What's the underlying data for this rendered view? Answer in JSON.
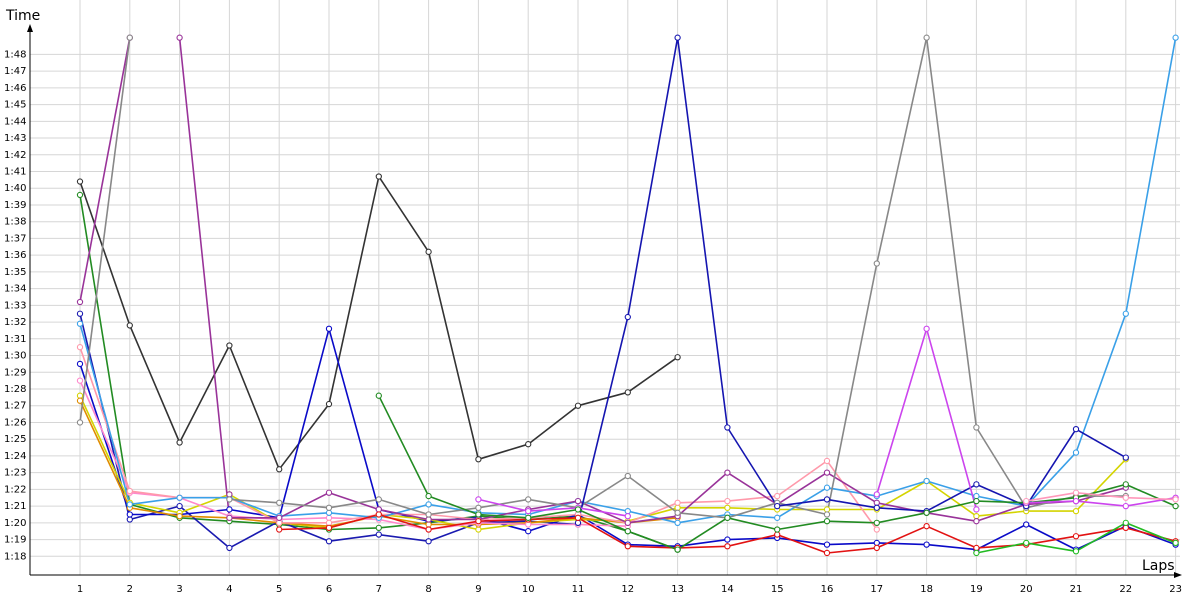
{
  "chart_data": {
    "type": "line",
    "title": "",
    "xlabel": "Laps",
    "ylabel": "Time",
    "x": [
      1,
      2,
      3,
      4,
      5,
      6,
      7,
      8,
      9,
      10,
      11,
      12,
      13,
      14,
      15,
      16,
      17,
      18,
      19,
      20,
      21,
      22,
      23
    ],
    "xlim": [
      1,
      23
    ],
    "ylim": [
      77,
      109
    ],
    "y_tick_values": [
      78,
      79,
      80,
      81,
      82,
      83,
      84,
      85,
      86,
      87,
      88,
      89,
      90,
      91,
      92,
      93,
      94,
      95,
      96,
      97,
      98,
      99,
      100,
      101,
      102,
      103,
      104,
      105,
      106,
      107,
      108
    ],
    "y_tick_labels": [
      "1:18",
      "1:19",
      "1:20",
      "1:21",
      "1:22",
      "1:23",
      "1:24",
      "1:25",
      "1:26",
      "1:27",
      "1:28",
      "1:29",
      "1:30",
      "1:31",
      "1:32",
      "1:33",
      "1:34",
      "1:35",
      "1:36",
      "1:37",
      "1:38",
      "1:39",
      "1:40",
      "1:41",
      "1:42",
      "1:43",
      "1:44",
      "1:45",
      "1:46",
      "1:47",
      "1:48"
    ],
    "grid": true,
    "legend": "none",
    "series": [
      {
        "color": "#333333",
        "values": [
          100.4,
          91.8,
          84.8,
          90.6,
          83.2,
          87.1,
          100.7,
          96.2,
          83.8,
          84.7,
          87.0,
          87.8,
          89.9,
          null,
          null,
          null,
          null,
          null,
          null,
          null,
          null,
          null,
          null
        ]
      },
      {
        "color": "#228B22",
        "values": [
          99.6,
          81.1,
          80.3,
          80.1,
          79.9,
          79.6,
          79.7,
          80.0,
          80.4,
          80.2,
          80.4,
          79.5,
          78.4,
          null,
          null,
          null,
          null,
          null,
          null,
          null,
          null,
          null,
          null
        ]
      },
      {
        "color": "#1a1ab0",
        "values": [
          92.5,
          80.2,
          81.0,
          78.5,
          80.1,
          78.9,
          79.3,
          78.9,
          80.0,
          80.1,
          79.9,
          null,
          null,
          null,
          null,
          null,
          null,
          null,
          null,
          null,
          null,
          null,
          null
        ]
      },
      {
        "color": "#0a0ac8",
        "values": [
          89.5,
          80.5,
          80.5,
          80.8,
          80.3,
          91.6,
          80.8,
          80.1,
          80.3,
          79.5,
          80.5,
          78.7,
          78.6,
          79.0,
          79.1,
          78.7,
          78.8,
          78.7,
          78.4,
          79.9,
          78.4,
          79.8,
          78.7
        ]
      },
      {
        "color": "#d4d400",
        "values": [
          87.6,
          81.2,
          80.6,
          81.7,
          80.0,
          79.7,
          80.5,
          80.2,
          79.6,
          80.0,
          80.2,
          80.1,
          80.9,
          80.9,
          80.8,
          80.8,
          80.8,
          82.5,
          80.4,
          80.7,
          80.7,
          83.8,
          null
        ]
      },
      {
        "color": "#e08c00",
        "values": [
          87.3,
          80.9,
          80.4,
          80.3,
          80.0,
          79.8,
          80.4,
          79.9,
          79.9,
          80.0,
          80.3,
          80.0,
          80.3,
          null,
          null,
          null,
          null,
          null,
          null,
          null,
          null,
          null,
          null
        ]
      },
      {
        "color": "#ff88cc",
        "values": [
          88.5,
          81.8,
          81.5,
          80.4,
          80.2,
          80.3,
          80.2,
          79.6,
          80.0,
          79.9,
          79.9,
          79.8,
          null,
          null,
          null,
          null,
          null,
          null,
          null,
          null,
          null,
          null,
          null
        ]
      },
      {
        "color": "#ff99aa",
        "values": [
          90.5,
          81.9,
          81.5,
          81.5,
          80.0,
          80.0,
          80.5,
          80.5,
          80.2,
          80.3,
          80.5,
          80.0,
          81.2,
          81.3,
          81.6,
          83.7,
          79.6,
          null,
          null,
          null,
          null,
          null,
          null
        ]
      },
      {
        "color": "#3aa0e8",
        "values": [
          91.9,
          81.1,
          81.5,
          81.5,
          80.4,
          80.6,
          80.3,
          81.1,
          80.6,
          80.5,
          81.3,
          80.7,
          80.0,
          80.5,
          80.3,
          82.1,
          81.6,
          82.5,
          81.6,
          81.0,
          84.2,
          92.5,
          109
        ]
      },
      {
        "color": "#993399",
        "values": [
          93.2,
          109,
          null,
          81.7,
          null,
          null,
          null,
          null,
          null,
          null,
          null,
          null,
          null,
          null,
          null,
          null,
          null,
          null,
          null,
          null,
          null,
          null,
          null
        ]
      },
      {
        "color": "#888888",
        "values": [
          86.0,
          109,
          null,
          null,
          null,
          null,
          null,
          null,
          null,
          null,
          null,
          null,
          null,
          null,
          null,
          null,
          null,
          null,
          null,
          null,
          null,
          null,
          null
        ]
      },
      {
        "color": "#993399",
        "values": [
          null,
          null,
          109,
          80.3,
          80.3,
          81.8,
          80.8,
          80.2,
          80.2,
          80.8,
          81.3,
          80.0,
          80.4,
          83.0,
          81.1,
          83.0,
          81.2,
          80.6,
          80.1,
          81.1,
          81.3,
          82.1,
          null
        ]
      },
      {
        "color": "#888888",
        "values": [
          null,
          null,
          null,
          81.4,
          81.2,
          80.9,
          81.4,
          80.5,
          80.9,
          81.4,
          80.9,
          82.8,
          80.6,
          80.3,
          81.2,
          80.5,
          95.5,
          109,
          85.7,
          80.9,
          81.6,
          81.6,
          null
        ]
      },
      {
        "color": "#1515b0",
        "values": [
          null,
          null,
          null,
          null,
          null,
          null,
          null,
          null,
          null,
          null,
          80.0,
          92.3,
          109,
          85.7,
          81.0,
          81.4,
          80.9,
          80.7,
          82.3,
          81.0,
          85.6,
          83.9,
          null
        ]
      },
      {
        "color": "#e21212",
        "values": [
          null,
          null,
          null,
          null,
          79.6,
          79.7,
          80.5,
          79.6,
          80.1,
          80.2,
          80.3,
          78.6,
          78.5,
          78.6,
          79.3,
          78.2,
          78.5,
          79.8,
          78.5,
          78.7,
          79.2,
          79.7,
          78.9
        ]
      },
      {
        "color": "#22bb22",
        "values": [
          null,
          null,
          null,
          null,
          null,
          null,
          null,
          null,
          null,
          null,
          null,
          null,
          null,
          null,
          null,
          null,
          null,
          null,
          78.2,
          78.8,
          78.3,
          80.0,
          78.8
        ]
      },
      {
        "color": "#cc44ee",
        "values": [
          null,
          null,
          null,
          null,
          null,
          null,
          null,
          null,
          81.4,
          80.7,
          80.9,
          80.4,
          null,
          null,
          null,
          null,
          81.7,
          91.6,
          80.8,
          null,
          null,
          null,
          null
        ]
      },
      {
        "color": "#228B22",
        "values": [
          null,
          null,
          null,
          null,
          null,
          null,
          87.6,
          81.6,
          80.5,
          80.3,
          80.8,
          79.5,
          78.4,
          80.3,
          79.6,
          80.1,
          80.0,
          80.6,
          81.3,
          81.2,
          81.5,
          82.3,
          81.0
        ]
      },
      {
        "color": "#cc44ee",
        "values": [
          null,
          null,
          null,
          null,
          null,
          null,
          null,
          null,
          null,
          null,
          null,
          null,
          null,
          null,
          null,
          null,
          null,
          null,
          null,
          81.2,
          81.3,
          81.0,
          81.5
        ]
      },
      {
        "color": "#ff99bb",
        "values": [
          null,
          null,
          null,
          null,
          null,
          null,
          null,
          null,
          null,
          null,
          null,
          null,
          null,
          null,
          null,
          null,
          null,
          null,
          null,
          81.3,
          81.8,
          81.5,
          81.4
        ]
      }
    ]
  }
}
